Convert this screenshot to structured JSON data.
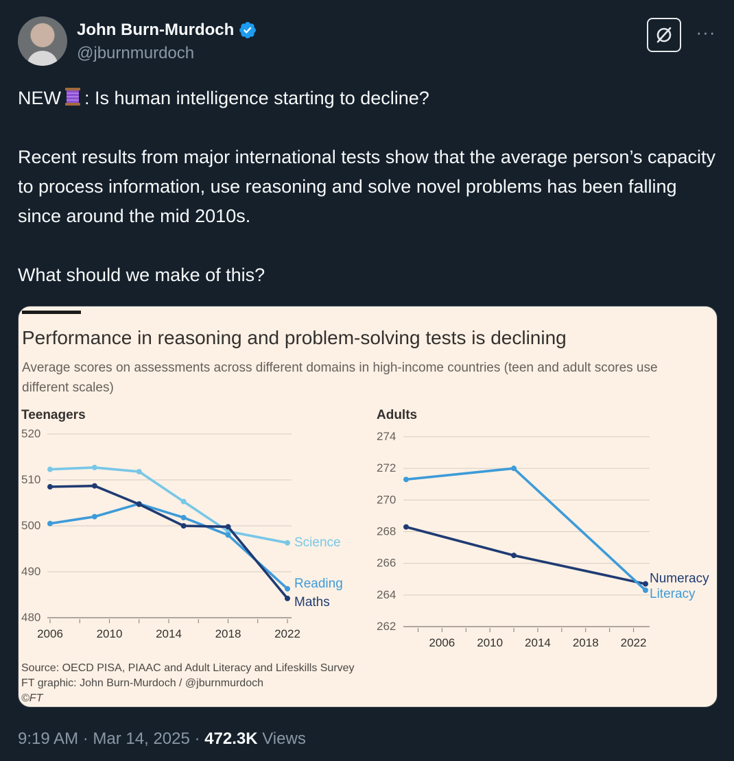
{
  "author": {
    "name": "John Burn-Murdoch",
    "handle": "@jburnmurdoch"
  },
  "tweet": {
    "line1_prefix": "NEW",
    "line1_suffix": ": Is human intelligence starting to decline?",
    "paragraph2": "Recent results from major international tests show that the average person’s capacity to process information, use reasoning and solve novel problems has been falling since around the mid 2010s.",
    "paragraph3": "What should we make of this?"
  },
  "icons": {
    "verified": "verified-badge-icon",
    "grok": "grok-icon",
    "more": "more-options-icon",
    "thread": "thread-spool-icon"
  },
  "colors": {
    "background": "#15202b",
    "chart_background": "#fdf1e5",
    "dark_blue": "#1f3b73",
    "mid_blue": "#3d9bd9",
    "light_blue": "#78c7e8",
    "verified": "#1d9bf0"
  },
  "chart_card": {
    "title": "Performance in reasoning and problem-solving tests is declining",
    "subtitle": "Average scores on assessments across different domains in high-income countries (teen and adult scores use different scales)",
    "source_line1": "Source: OECD PISA, PIAAC and Adult Literacy and Lifeskills Survey",
    "source_line2": "FT graphic: John Burn-Murdoch / @jburnmurdoch",
    "source_line3": "©FT"
  },
  "chart_data": [
    {
      "type": "line",
      "title": "Teenagers",
      "xlim": [
        2006,
        2022
      ],
      "xticks": [
        2006,
        2010,
        2014,
        2018,
        2022
      ],
      "ylim": [
        480,
        520
      ],
      "yticks": [
        480,
        490,
        500,
        510,
        520
      ],
      "grid": true,
      "series": [
        {
          "name": "Science",
          "color": "#78c7e8",
          "x": [
            2006,
            2009,
            2012,
            2015,
            2018,
            2022
          ],
          "y": [
            512.3,
            512.7,
            511.8,
            505.3,
            498.8,
            496.3
          ]
        },
        {
          "name": "Reading",
          "color": "#3d9bd9",
          "x": [
            2006,
            2009,
            2012,
            2015,
            2018,
            2022
          ],
          "y": [
            500.5,
            502.0,
            504.8,
            501.8,
            498.0,
            486.3
          ]
        },
        {
          "name": "Maths",
          "color": "#1f3b73",
          "x": [
            2006,
            2009,
            2012,
            2015,
            2018,
            2022
          ],
          "y": [
            508.5,
            508.7,
            504.7,
            500.0,
            499.8,
            484.2
          ]
        }
      ]
    },
    {
      "type": "line",
      "title": "Adults",
      "xlim": [
        2003,
        2023
      ],
      "xticks": [
        2006,
        2010,
        2014,
        2018,
        2022
      ],
      "ylim": [
        262,
        274
      ],
      "yticks": [
        262,
        264,
        266,
        268,
        270,
        272,
        274
      ],
      "grid": true,
      "series": [
        {
          "name": "Numeracy",
          "color": "#1f3b73",
          "x": [
            2003,
            2012,
            2023
          ],
          "y": [
            268.3,
            266.5,
            264.7
          ]
        },
        {
          "name": "Literacy",
          "color": "#3d9bd9",
          "x": [
            2003,
            2012,
            2023
          ],
          "y": [
            271.3,
            272.0,
            264.3
          ]
        }
      ]
    }
  ],
  "footer": {
    "time": "9:19 AM",
    "separator": "·",
    "date": "Mar 14, 2025",
    "views_count": "472.3K",
    "views_label": "Views"
  }
}
